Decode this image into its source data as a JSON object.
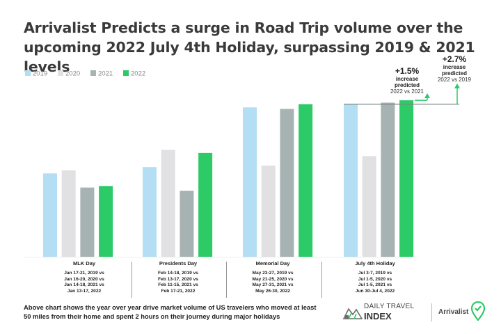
{
  "title": "Arrivalist Predicts a surge in Road Trip volume over the upcoming 2022 July 4th Holiday, surpassing 2019 & 2021 levels",
  "caption": "Above chart shows the year over year drive market volume of US travelers who moved at least 50 miles from their home and spent 2 hours on their journey during major holidays",
  "chart_data": {
    "type": "bar",
    "title": "Arrivalist Predicts a surge in Road Trip volume over the upcoming 2022 July 4th Holiday, surpassing 2019 & 2021 levels",
    "legend_position": "top-left",
    "grid": false,
    "y_axis_labels": false,
    "ylim": [
      0,
      100
    ],
    "categories": [
      "MLK Day",
      "Presidents Day",
      "Memorial Day",
      "July 4th Holiday"
    ],
    "category_dates": [
      [
        "Jan 17-21, 2019 vs",
        "Jan 16-20, 2020 vs",
        "Jan 14-18, 2021 vs",
        "Jan 13-17, 2022"
      ],
      [
        "Feb 14-18, 2019 vs",
        "Feb 13-17, 2020 vs",
        "Feb 11-15, 2021 vs",
        "Feb 17-21, 2022"
      ],
      [
        "May 23-27, 2019 vs",
        "May 21-25, 2020 vs",
        "May 27-31, 2021 vs",
        "May 26-30, 2022"
      ],
      [
        "Jul 3-7, 2019 vs",
        "Jul 1-5, 2020 vs",
        "Jul 1-5, 2021 vs",
        "Jun 30-Jul 4, 2022"
      ]
    ],
    "series": [
      {
        "name": "2019",
        "color": "#b3def3",
        "values": [
          53,
          57,
          95,
          97
        ]
      },
      {
        "name": "2020",
        "color": "#e1e1e3",
        "values": [
          55,
          68,
          58,
          64
        ]
      },
      {
        "name": "2021",
        "color": "#a7b3b2",
        "values": [
          44,
          42,
          94,
          98
        ]
      },
      {
        "name": "2022",
        "color": "#2dca68",
        "values": [
          45,
          66,
          97,
          99.5
        ]
      }
    ],
    "annotations": [
      {
        "value": "+1.5%",
        "line1": "increase",
        "line2": "predicted",
        "comparison": "2022 vs 2021"
      },
      {
        "value": "+2.7%",
        "line1": "increase",
        "line2": "predicted",
        "comparison": "2022 vs 2019"
      }
    ]
  },
  "logos": {
    "daily_travel_index_line1": "DAILY TRAVEL",
    "daily_travel_index_line2": "INDEX",
    "arrivalist": "Arrivalist"
  },
  "colors": {
    "annotation_arrow": "#2dca68",
    "reference_line": "#7c8a89"
  }
}
